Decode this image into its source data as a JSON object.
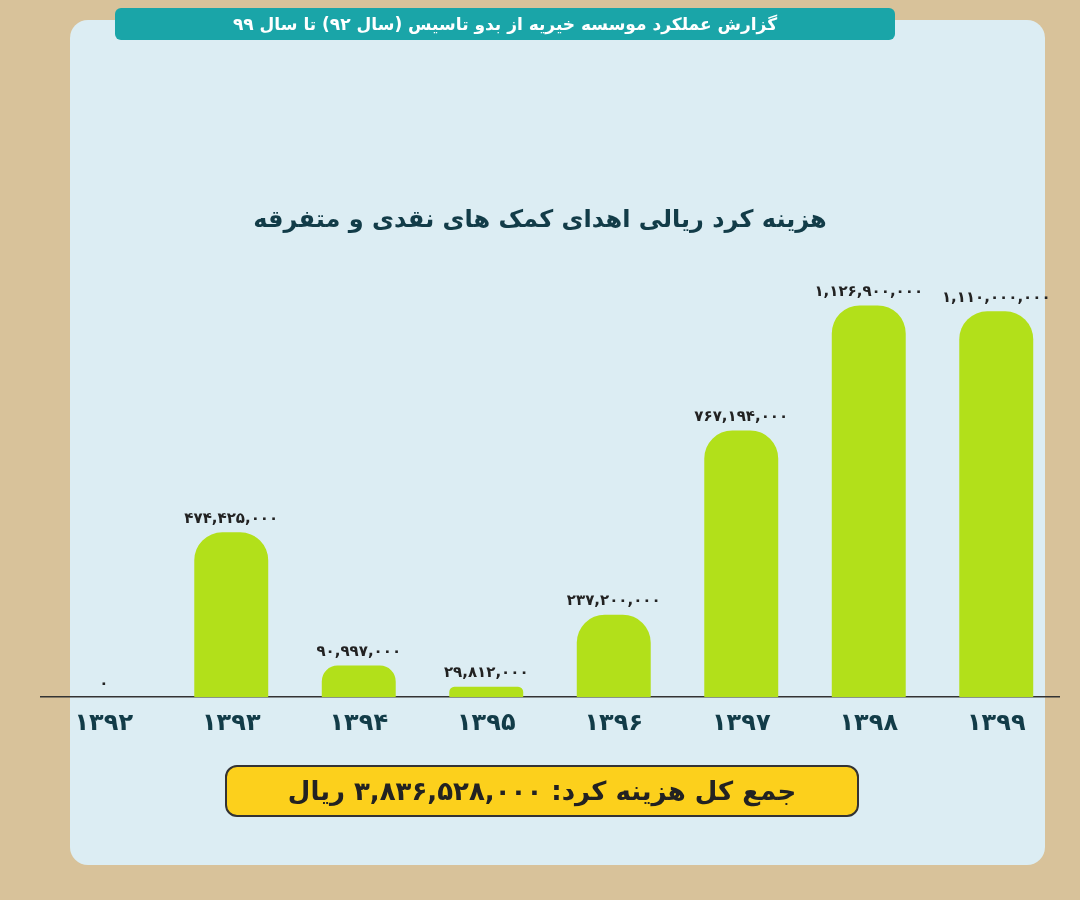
{
  "chart_data": {
    "type": "bar",
    "title": "گزارش عملکرد موسسه خیریه از بدو تاسیس (سال ۹۲) تا سال ۹۹",
    "subtitle": "هزینه کرد ریالی اهدای کمک های نقدی و متفرقه",
    "categories": [
      "۱۳۹۲",
      "۱۳۹۳",
      "۱۳۹۴",
      "۱۳۹۵",
      "۱۳۹۶",
      "۱۳۹۷",
      "۱۳۹۸",
      "۱۳۹۹"
    ],
    "values": [
      0,
      474425000,
      90997000,
      29812000,
      237200000,
      767194000,
      1126900000,
      1110000000
    ],
    "value_labels": [
      "۰",
      "۴۷۴,۴۲۵,۰۰۰",
      "۹۰,۹۹۷,۰۰۰",
      "۲۹,۸۱۲,۰۰۰",
      "۲۳۷,۲۰۰,۰۰۰",
      "۷۶۷,۱۹۴,۰۰۰",
      "۱,۱۲۶,۹۰۰,۰۰۰",
      "۱,۱۱۰,۰۰۰,۰۰۰"
    ],
    "color": "#b2e01a",
    "grid": false,
    "legend": false,
    "tick_labels": "x",
    "annotations": [
      "جمع کل هزینه کرد: ۳,۸۳۶,۵۲۸,۰۰۰ ریال"
    ]
  }
}
